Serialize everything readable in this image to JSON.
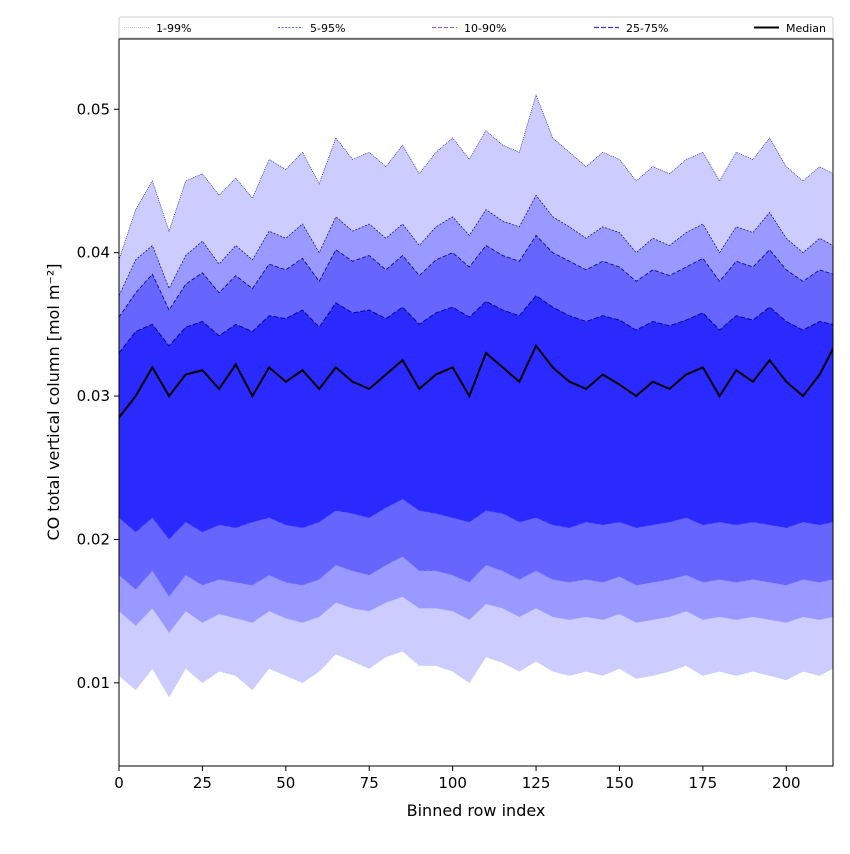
{
  "chart_data": {
    "type": "area",
    "xlabel": "Binned row index",
    "ylabel": "CO total vertical column [mol m⁻²]",
    "xlim": [
      0,
      214
    ],
    "ylim": [
      0.0042,
      0.0549
    ],
    "x_ticks": [
      0,
      25,
      50,
      75,
      100,
      125,
      150,
      175,
      200
    ],
    "y_ticks": [
      0.01,
      0.02,
      0.03,
      0.04,
      0.05
    ],
    "x_tick_labels": [
      "0",
      "25",
      "50",
      "75",
      "100",
      "125",
      "150",
      "175",
      "200"
    ],
    "y_tick_labels": [
      "0.01",
      "0.02",
      "0.03",
      "0.04",
      "0.05"
    ],
    "grid": false,
    "legend_position": "top",
    "legend": [
      {
        "key": "p1_99",
        "label": "1-99%"
      },
      {
        "key": "p5_95",
        "label": "5-95%"
      },
      {
        "key": "p10_90",
        "label": "10-90%"
      },
      {
        "key": "p25_75",
        "label": "25-75%"
      },
      {
        "key": "median",
        "label": "Median"
      }
    ],
    "colors": {
      "band_1_99": "#ccccff",
      "band_5_95": "#9999ff",
      "band_10_90": "#6666ff",
      "band_25_75": "#2a2aff",
      "median": "#000000",
      "upper_edge": "#00008b"
    },
    "x": [
      0,
      5,
      10,
      15,
      20,
      25,
      30,
      35,
      40,
      45,
      50,
      55,
      60,
      65,
      70,
      75,
      80,
      85,
      90,
      95,
      100,
      105,
      110,
      115,
      120,
      125,
      130,
      135,
      140,
      145,
      150,
      155,
      160,
      165,
      170,
      175,
      180,
      185,
      190,
      195,
      200,
      205,
      210,
      214
    ],
    "series": [
      {
        "key": "p99",
        "label": "1-99%",
        "values": [
          0.0395,
          0.043,
          0.045,
          0.0415,
          0.045,
          0.0455,
          0.044,
          0.0452,
          0.0438,
          0.0465,
          0.0458,
          0.047,
          0.0448,
          0.048,
          0.0465,
          0.047,
          0.046,
          0.0475,
          0.0455,
          0.047,
          0.048,
          0.0465,
          0.0485,
          0.0475,
          0.047,
          0.051,
          0.048,
          0.047,
          0.046,
          0.047,
          0.0465,
          0.045,
          0.046,
          0.0455,
          0.0465,
          0.047,
          0.045,
          0.047,
          0.0465,
          0.048,
          0.046,
          0.045,
          0.046,
          0.0455
        ]
      },
      {
        "key": "p95",
        "label": "5-95%",
        "values": [
          0.037,
          0.0395,
          0.0405,
          0.0375,
          0.0398,
          0.0408,
          0.0392,
          0.0405,
          0.0395,
          0.0415,
          0.041,
          0.042,
          0.04,
          0.0425,
          0.0415,
          0.042,
          0.041,
          0.042,
          0.0405,
          0.0418,
          0.0425,
          0.0412,
          0.043,
          0.0422,
          0.0418,
          0.044,
          0.0425,
          0.0418,
          0.041,
          0.0418,
          0.0414,
          0.04,
          0.041,
          0.0405,
          0.0414,
          0.042,
          0.04,
          0.0418,
          0.0414,
          0.0428,
          0.041,
          0.04,
          0.041,
          0.0405
        ]
      },
      {
        "key": "p90",
        "label": "10-90%",
        "values": [
          0.0355,
          0.0372,
          0.0385,
          0.036,
          0.0378,
          0.0386,
          0.0372,
          0.0384,
          0.0375,
          0.0392,
          0.0388,
          0.0396,
          0.038,
          0.0402,
          0.0394,
          0.0398,
          0.0388,
          0.0398,
          0.0384,
          0.0395,
          0.04,
          0.039,
          0.0405,
          0.0398,
          0.0394,
          0.0412,
          0.04,
          0.0394,
          0.0388,
          0.0394,
          0.039,
          0.038,
          0.0388,
          0.0384,
          0.039,
          0.0396,
          0.038,
          0.0394,
          0.039,
          0.0402,
          0.0388,
          0.038,
          0.0388,
          0.0385
        ]
      },
      {
        "key": "p75",
        "label": "25-75%",
        "values": [
          0.033,
          0.0345,
          0.035,
          0.0335,
          0.0348,
          0.0352,
          0.0342,
          0.035,
          0.0345,
          0.0356,
          0.0354,
          0.036,
          0.0348,
          0.0365,
          0.0358,
          0.036,
          0.0354,
          0.0362,
          0.035,
          0.0358,
          0.0362,
          0.0355,
          0.0366,
          0.036,
          0.0356,
          0.037,
          0.0362,
          0.0356,
          0.0352,
          0.0356,
          0.0353,
          0.0346,
          0.0352,
          0.0349,
          0.0353,
          0.0358,
          0.0346,
          0.0356,
          0.0353,
          0.0362,
          0.0352,
          0.0346,
          0.0352,
          0.035
        ]
      },
      {
        "key": "median",
        "label": "Median",
        "values": [
          0.0285,
          0.03,
          0.032,
          0.03,
          0.0315,
          0.0318,
          0.0305,
          0.0322,
          0.03,
          0.032,
          0.031,
          0.0318,
          0.0305,
          0.032,
          0.031,
          0.0305,
          0.0315,
          0.0325,
          0.0305,
          0.0315,
          0.032,
          0.03,
          0.033,
          0.032,
          0.031,
          0.0335,
          0.032,
          0.031,
          0.0305,
          0.0315,
          0.0308,
          0.03,
          0.031,
          0.0305,
          0.0315,
          0.032,
          0.03,
          0.0318,
          0.031,
          0.0325,
          0.031,
          0.03,
          0.0315,
          0.0333
        ]
      },
      {
        "key": "p25",
        "label": "25-75%",
        "values": [
          0.0215,
          0.0205,
          0.0215,
          0.02,
          0.0212,
          0.0205,
          0.021,
          0.0208,
          0.0212,
          0.0215,
          0.021,
          0.0208,
          0.0212,
          0.022,
          0.0218,
          0.0215,
          0.0222,
          0.0228,
          0.022,
          0.0218,
          0.0215,
          0.0212,
          0.022,
          0.0218,
          0.0212,
          0.0215,
          0.021,
          0.0208,
          0.0212,
          0.021,
          0.0212,
          0.0208,
          0.021,
          0.0212,
          0.0215,
          0.021,
          0.0212,
          0.021,
          0.0212,
          0.021,
          0.0208,
          0.0212,
          0.021,
          0.0212
        ]
      },
      {
        "key": "p10",
        "label": "10-90%",
        "values": [
          0.0175,
          0.0165,
          0.0178,
          0.016,
          0.0175,
          0.0168,
          0.0172,
          0.017,
          0.0168,
          0.0175,
          0.017,
          0.0168,
          0.0172,
          0.0182,
          0.0178,
          0.0175,
          0.0182,
          0.0188,
          0.0178,
          0.0178,
          0.0175,
          0.017,
          0.0182,
          0.0178,
          0.0172,
          0.0178,
          0.0172,
          0.017,
          0.0172,
          0.017,
          0.0174,
          0.0168,
          0.017,
          0.0172,
          0.0175,
          0.017,
          0.0172,
          0.017,
          0.0172,
          0.017,
          0.0168,
          0.0172,
          0.017,
          0.0172
        ]
      },
      {
        "key": "p5",
        "label": "5-95%",
        "values": [
          0.015,
          0.014,
          0.0152,
          0.0135,
          0.015,
          0.0142,
          0.0148,
          0.0145,
          0.0142,
          0.015,
          0.0145,
          0.0142,
          0.0146,
          0.0156,
          0.0152,
          0.015,
          0.0156,
          0.016,
          0.0152,
          0.0152,
          0.015,
          0.0144,
          0.0155,
          0.0152,
          0.0146,
          0.0152,
          0.0146,
          0.0144,
          0.0146,
          0.0144,
          0.0148,
          0.0142,
          0.0144,
          0.0146,
          0.015,
          0.0144,
          0.0146,
          0.0144,
          0.0146,
          0.0144,
          0.0142,
          0.0146,
          0.0144,
          0.0146
        ]
      },
      {
        "key": "p1",
        "label": "1-99%",
        "values": [
          0.0105,
          0.0095,
          0.011,
          0.009,
          0.011,
          0.01,
          0.0108,
          0.0105,
          0.0095,
          0.011,
          0.0105,
          0.01,
          0.0108,
          0.012,
          0.0115,
          0.011,
          0.0118,
          0.0122,
          0.0112,
          0.0112,
          0.0108,
          0.01,
          0.0118,
          0.0114,
          0.0108,
          0.0115,
          0.0108,
          0.0105,
          0.0108,
          0.0105,
          0.011,
          0.0103,
          0.0105,
          0.0108,
          0.0112,
          0.0105,
          0.0108,
          0.0105,
          0.0108,
          0.0105,
          0.0102,
          0.0108,
          0.0105,
          0.011
        ]
      }
    ]
  }
}
